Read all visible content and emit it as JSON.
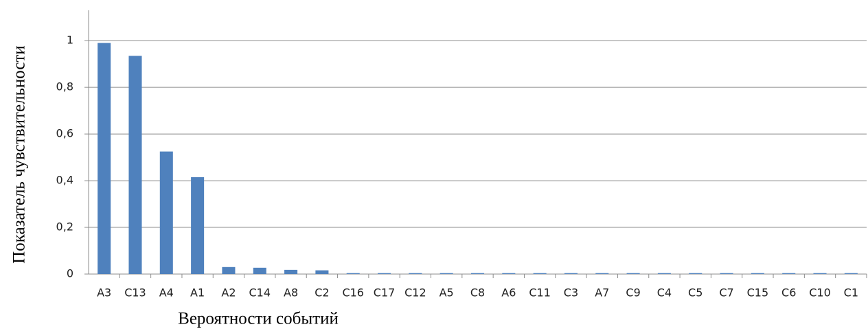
{
  "chart_data": {
    "type": "bar",
    "xlabel": "Вероятности событий",
    "ylabel": "Показатель чувствительности",
    "categories": [
      "A3",
      "C13",
      "A4",
      "A1",
      "A2",
      "C14",
      "A8",
      "C2",
      "C16",
      "C17",
      "C12",
      "A5",
      "C8",
      "A6",
      "C11",
      "C3",
      "A7",
      "C9",
      "C4",
      "C5",
      "C7",
      "C15",
      "C6",
      "C10",
      "C1"
    ],
    "values": [
      0.99,
      0.935,
      0.525,
      0.415,
      0.03,
      0.027,
      0.018,
      0.016,
      0.004,
      0.004,
      0.004,
      0.004,
      0.004,
      0.004,
      0.004,
      0.004,
      0.004,
      0.004,
      0.004,
      0.004,
      0.004,
      0.004,
      0.004,
      0.004,
      0.004
    ],
    "color": "#4f81bd",
    "ylim": [
      0,
      1.13
    ],
    "yticks": [
      0,
      {
        "value": 0.2,
        "label": "0,2"
      },
      {
        "value": 0.4,
        "label": "0,4"
      },
      {
        "value": 0.6,
        "label": "0,6"
      },
      {
        "value": 0.8,
        "label": "0,8"
      },
      1
    ],
    "grid": true
  }
}
